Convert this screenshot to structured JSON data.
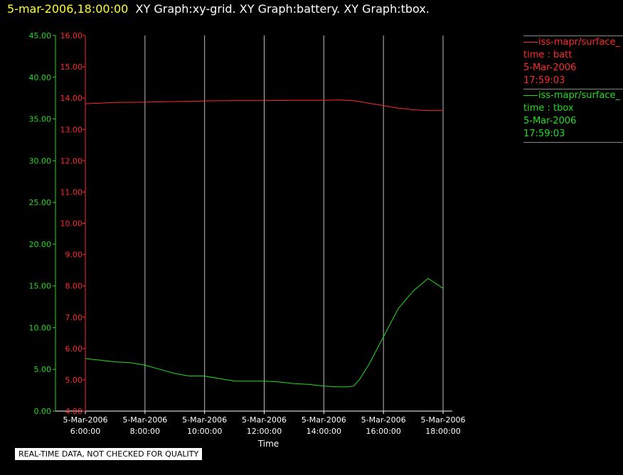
{
  "header": {
    "date": "5-mar-2006,18:00:00",
    "graphs": "XY Graph:xy-grid.  XY Graph:battery.  XY Graph:tbox."
  },
  "legend": [
    {
      "name": "iss-mapr/surface_",
      "line1": "time : batt",
      "line2": "5-Mar-2006",
      "line3": "17:59:03",
      "color": "#ff2a2a"
    },
    {
      "name": "iss-mapr/surface_",
      "line1": "time : tbox",
      "line2": "5-Mar-2006",
      "line3": "17:59:03",
      "color": "#22dd22"
    }
  ],
  "note": "REAL-TIME DATA, NOT CHECKED FOR QUALITY",
  "chart_data": {
    "type": "line",
    "xlabel": "Time",
    "x_ticks": [
      {
        "date": "5-Mar-2006",
        "time": "6:00:00"
      },
      {
        "date": "5-Mar-2006",
        "time": "8:00:00"
      },
      {
        "date": "5-Mar-2006",
        "time": "10:00:00"
      },
      {
        "date": "5-Mar-2006",
        "time": "12:00:00"
      },
      {
        "date": "5-Mar-2006",
        "time": "14:00:00"
      },
      {
        "date": "5-Mar-2006",
        "time": "16:00:00"
      },
      {
        "date": "5-Mar-2006",
        "time": "18:00:00"
      }
    ],
    "x_hours_range": [
      6,
      18
    ],
    "grid": "vertical",
    "y_left_green": {
      "ticks": [
        "0.00",
        "5.00",
        "10.00",
        "15.00",
        "20.00",
        "25.00",
        "30.00",
        "35.00",
        "40.00",
        "45.00"
      ],
      "range": [
        0,
        45
      ],
      "color": "#22dd22"
    },
    "y_left_red": {
      "ticks": [
        "4.00",
        "5.00",
        "6.00",
        "7.00",
        "8.00",
        "9.00",
        "10.00",
        "11.00",
        "12.00",
        "13.00",
        "14.00",
        "15.00",
        "16.00"
      ],
      "range": [
        4,
        16
      ],
      "color": "#ff2a2a"
    },
    "series": [
      {
        "name": "iss-mapr/surface_",
        "axis": "red",
        "color": "#ff2a2a",
        "x_hours": [
          6.0,
          6.5,
          7.0,
          8.0,
          9.0,
          10.0,
          11.0,
          12.0,
          13.0,
          14.0,
          14.5,
          15.0,
          15.5,
          16.0,
          16.5,
          17.0,
          17.5,
          18.0
        ],
        "values": [
          13.82,
          13.84,
          13.86,
          13.87,
          13.89,
          13.91,
          13.92,
          13.92,
          13.93,
          13.93,
          13.94,
          13.92,
          13.84,
          13.76,
          13.68,
          13.63,
          13.6,
          13.6
        ]
      },
      {
        "name": "iss-mapr/surface_",
        "axis": "green",
        "color": "#22dd22",
        "x_hours": [
          6.0,
          6.5,
          7.0,
          7.5,
          8.0,
          8.5,
          9.0,
          9.5,
          10.0,
          10.5,
          11.0,
          11.5,
          12.0,
          12.5,
          13.0,
          13.5,
          14.0,
          14.5,
          14.8,
          15.0,
          15.2,
          15.5,
          16.0,
          16.5,
          17.0,
          17.5,
          18.0
        ],
        "values": [
          6.3,
          6.1,
          5.9,
          5.8,
          5.5,
          5.0,
          4.5,
          4.2,
          4.2,
          3.9,
          3.6,
          3.6,
          3.6,
          3.5,
          3.3,
          3.2,
          3.0,
          2.9,
          2.9,
          3.0,
          3.8,
          5.5,
          8.9,
          12.3,
          14.4,
          15.9,
          14.7
        ]
      }
    ]
  }
}
